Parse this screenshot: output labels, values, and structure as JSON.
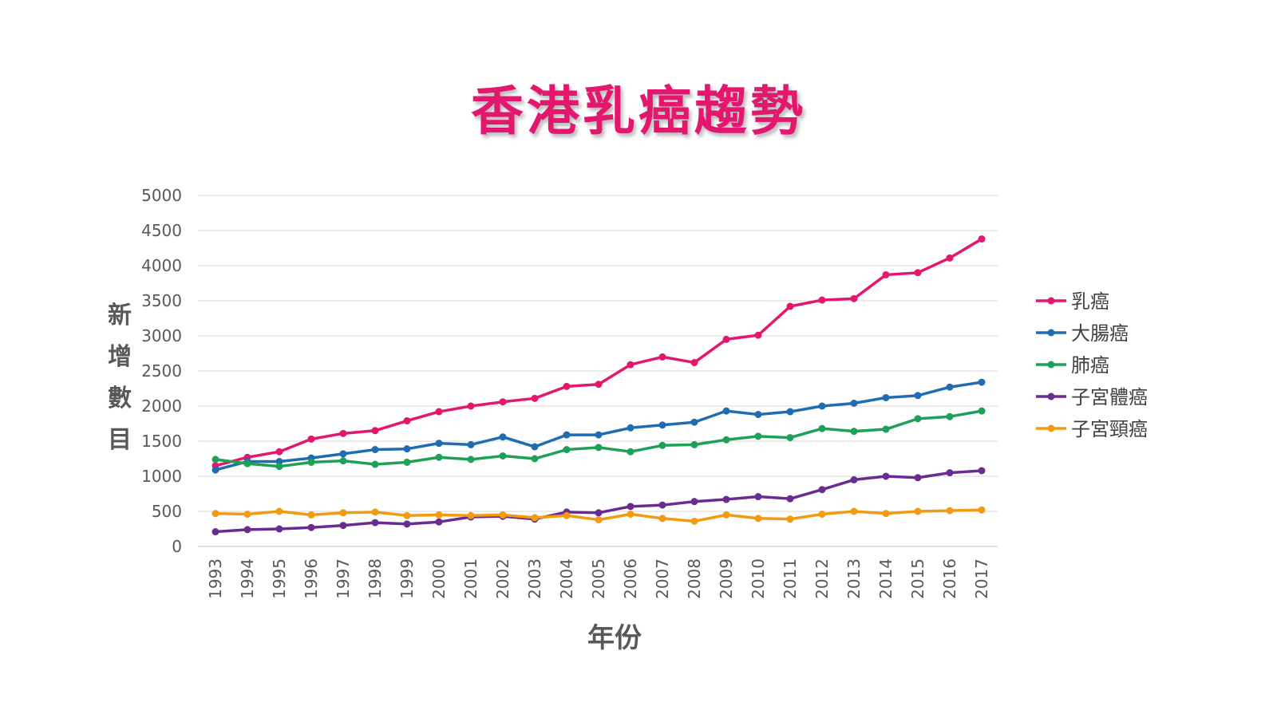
{
  "chart_data": {
    "type": "line",
    "title": "香港乳癌趨勢",
    "xlabel": "年份",
    "ylabel": "新增數目",
    "ylim": [
      0,
      5000
    ],
    "yticks": [
      "0",
      "500",
      "1000",
      "1500",
      "2000",
      "2500",
      "3000",
      "3500",
      "4000",
      "4500",
      "5000"
    ],
    "grid": true,
    "legend_position": "right",
    "x": [
      "1993",
      "1994",
      "1995",
      "1996",
      "1997",
      "1998",
      "1999",
      "2000",
      "2001",
      "2002",
      "2003",
      "2004",
      "2005",
      "2006",
      "2007",
      "2008",
      "2009",
      "2010",
      "2011",
      "2012",
      "2013",
      "2014",
      "2015",
      "2016",
      "2017"
    ],
    "series": [
      {
        "name": "乳癌",
        "color": "#e4176f",
        "values": [
          1150,
          1270,
          1350,
          1530,
          1610,
          1650,
          1790,
          1920,
          2000,
          2060,
          2110,
          2280,
          2310,
          2590,
          2700,
          2620,
          2950,
          3010,
          3420,
          3510,
          3530,
          3870,
          3900,
          4110,
          4380
        ]
      },
      {
        "name": "大腸癌",
        "color": "#1f6cb0",
        "values": [
          1090,
          1210,
          1210,
          1260,
          1320,
          1380,
          1390,
          1470,
          1450,
          1560,
          1420,
          1590,
          1590,
          1690,
          1730,
          1770,
          1930,
          1880,
          1920,
          2000,
          2040,
          2120,
          2150,
          2270,
          2340
        ]
      },
      {
        "name": "肺癌",
        "color": "#1ea157",
        "values": [
          1240,
          1180,
          1140,
          1200,
          1220,
          1170,
          1200,
          1270,
          1240,
          1290,
          1250,
          1380,
          1410,
          1350,
          1440,
          1450,
          1520,
          1570,
          1550,
          1680,
          1640,
          1670,
          1820,
          1850,
          1930
        ]
      },
      {
        "name": "子宮體癌",
        "color": "#6b2c91",
        "values": [
          210,
          240,
          250,
          270,
          300,
          340,
          320,
          350,
          420,
          430,
          390,
          490,
          480,
          570,
          590,
          640,
          670,
          710,
          680,
          810,
          950,
          1000,
          980,
          1050,
          1080
        ]
      },
      {
        "name": "子宮頸癌",
        "color": "#f29b12",
        "values": [
          470,
          460,
          500,
          450,
          480,
          490,
          440,
          450,
          440,
          450,
          410,
          440,
          380,
          460,
          400,
          360,
          450,
          400,
          390,
          460,
          500,
          470,
          500,
          510,
          520
        ]
      }
    ]
  }
}
